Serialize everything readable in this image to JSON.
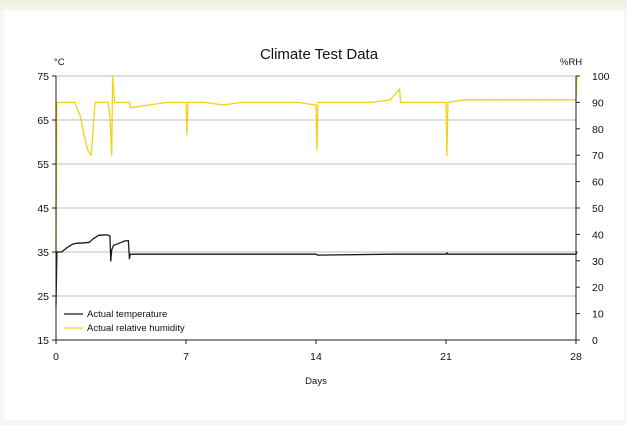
{
  "chart_data": {
    "type": "line",
    "title": "Climate Test Data",
    "xlabel": "Days",
    "left_unit": "°C",
    "right_unit": "%RH",
    "xlim": [
      0,
      28
    ],
    "ylim_left": [
      15,
      75
    ],
    "ylim_right": [
      0,
      100
    ],
    "x_ticks": [
      "0",
      "7",
      "14",
      "21",
      "28"
    ],
    "y_left_ticks": [
      "15",
      "25",
      "35",
      "45",
      "55",
      "65",
      "75"
    ],
    "y_right_ticks": [
      "0",
      "10",
      "20",
      "30",
      "40",
      "50",
      "60",
      "70",
      "80",
      "90",
      "100"
    ],
    "gridlines": [
      25,
      35,
      45,
      55,
      65,
      75
    ],
    "legend_position": "bottom-left",
    "colors": {
      "temperature": "#1a1a1a",
      "humidity": "#f3d11b",
      "grid": "#bdbdbd"
    },
    "series": [
      {
        "name": "Actual temperature",
        "axis": "left",
        "x": [
          0,
          0.05,
          0.1,
          0.3,
          0.6,
          0.9,
          1.1,
          1.3,
          1.8,
          2.0,
          2.3,
          2.7,
          2.9,
          2.95,
          3.0,
          3.1,
          3.4,
          3.7,
          3.9,
          3.95,
          4.0,
          4.1,
          10,
          14,
          14.1,
          18,
          21,
          21.05,
          21.1,
          25,
          28,
          28.05
        ],
        "y": [
          23,
          35,
          35,
          35,
          36,
          36.8,
          37,
          37,
          37.2,
          38,
          38.8,
          38.9,
          38.7,
          33,
          35.5,
          36.5,
          37,
          37.5,
          37.6,
          33.5,
          34.5,
          34.5,
          34.5,
          34.5,
          34.3,
          34.5,
          34.5,
          34.8,
          34.5,
          34.5,
          34.5,
          35
        ]
      },
      {
        "name": "Actual relative humidity",
        "axis": "right",
        "x": [
          0,
          0.05,
          0.3,
          0.8,
          1.0,
          1.3,
          1.5,
          1.7,
          1.9,
          2.1,
          2.3,
          2.6,
          2.8,
          2.9,
          3.0,
          3.05,
          3.15,
          3.3,
          3.6,
          3.8,
          3.9,
          3.95,
          4.0,
          5,
          6,
          7,
          7.05,
          7.1,
          8,
          9,
          10,
          11,
          12,
          13,
          14,
          14.05,
          14.1,
          15,
          16,
          17,
          18,
          18.5,
          18.55,
          18.6,
          19,
          20,
          21,
          21.05,
          21.1,
          22,
          23,
          24,
          25,
          26,
          27,
          28,
          28.05
        ],
        "y": [
          32,
          90,
          90,
          90,
          90,
          85,
          78,
          72,
          70,
          90,
          90,
          90,
          90,
          85,
          70,
          100,
          90,
          90,
          90,
          90,
          90,
          90,
          88,
          89,
          90,
          90,
          78,
          90,
          90,
          89,
          90,
          90,
          90,
          90,
          89,
          72,
          90,
          90,
          90,
          90,
          91,
          95,
          90,
          90,
          90,
          90,
          90,
          70,
          90,
          91,
          91,
          91,
          91,
          91,
          91,
          91,
          100
        ]
      }
    ]
  }
}
